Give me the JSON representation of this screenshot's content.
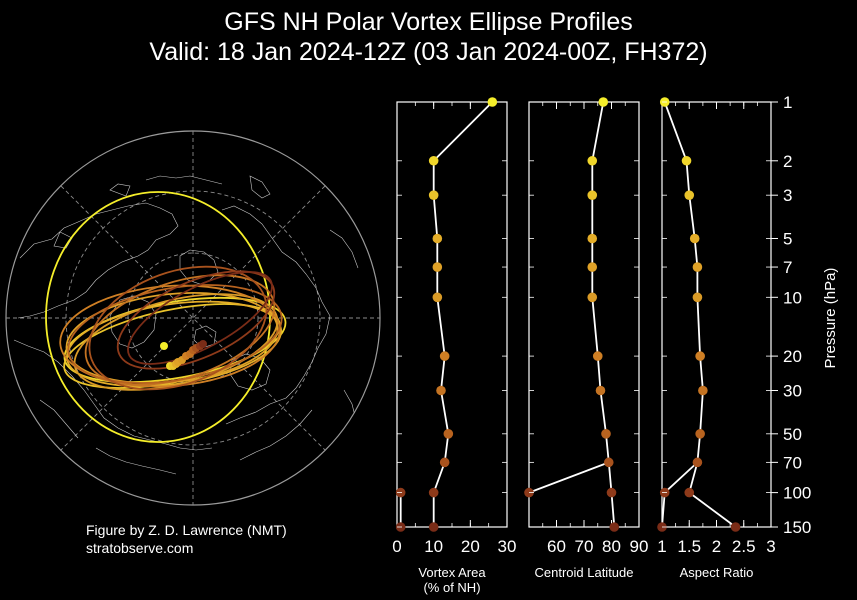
{
  "title": {
    "line1": "GFS NH Polar Vortex Ellipse Profiles",
    "line2": "Valid: 18 Jan 2024-12Z  (03 Jan 2024-00Z, FH372)"
  },
  "credit": {
    "line1": "Figure by Z. D. Lawrence (NMT)",
    "line2": "stratobserve.com"
  },
  "colors": {
    "background": "#000000",
    "profile_line": "#ffffff",
    "level_colors": [
      "#f5ee2a",
      "#f0d62a",
      "#eac32a",
      "#e4ad28",
      "#dfa127",
      "#d99a26",
      "#cf7f24",
      "#c47322",
      "#b8631f",
      "#a8521d",
      "#8e3a1a",
      "#7a2c17"
    ]
  },
  "y_axis": {
    "label": "Pressure (hPa)",
    "scale": "log",
    "levels": [
      1,
      2,
      3,
      5,
      7,
      10,
      20,
      30,
      50,
      70,
      100,
      150
    ]
  },
  "chart_data": [
    {
      "type": "line",
      "xlabel": "Vortex Area\n(% of NH)",
      "xlim": [
        0,
        30
      ],
      "xticks": [
        0,
        10,
        20,
        30
      ],
      "ylabel": "Pressure (hPa)",
      "y": [
        1,
        2,
        3,
        5,
        7,
        10,
        20,
        30,
        50,
        70,
        100,
        150
      ],
      "series": [
        {
          "values": [
            26,
            10,
            10,
            11,
            11,
            11,
            13,
            12,
            14,
            13,
            10,
            10
          ]
        },
        {
          "values": [
            null,
            null,
            null,
            null,
            null,
            null,
            null,
            null,
            null,
            null,
            1,
            1
          ]
        }
      ]
    },
    {
      "type": "line",
      "xlabel": "Centroid Latitude",
      "xlim": [
        50,
        90
      ],
      "xticks": [
        60,
        70,
        80,
        90
      ],
      "ylabel": "Pressure (hPa)",
      "y": [
        1,
        2,
        3,
        5,
        7,
        10,
        20,
        30,
        50,
        70,
        100,
        150
      ],
      "series": [
        {
          "values": [
            77,
            73,
            73,
            73,
            73,
            73,
            75,
            76,
            78,
            79,
            80,
            81
          ]
        },
        {
          "values": [
            null,
            null,
            null,
            null,
            null,
            null,
            null,
            null,
            null,
            79,
            50,
            null
          ]
        }
      ]
    },
    {
      "type": "line",
      "xlabel": "Aspect Ratio",
      "xlim": [
        1,
        3
      ],
      "xticks": [
        1,
        1.5,
        2,
        2.5,
        3
      ],
      "xticklabels": [
        "1",
        "1.5",
        "2",
        "2.5",
        "3"
      ],
      "ylabel": "Pressure (hPa)",
      "y": [
        1,
        2,
        3,
        5,
        7,
        10,
        20,
        30,
        50,
        70,
        100,
        150
      ],
      "series": [
        {
          "values": [
            1.05,
            1.45,
            1.5,
            1.6,
            1.65,
            1.65,
            1.7,
            1.75,
            1.7,
            1.65,
            1.5,
            2.35
          ]
        },
        {
          "values": [
            null,
            null,
            null,
            null,
            null,
            null,
            null,
            null,
            null,
            1.65,
            1.05,
            1.0
          ]
        }
      ]
    }
  ],
  "map": {
    "type": "polar-stereographic",
    "hemisphere": "NH"
  }
}
